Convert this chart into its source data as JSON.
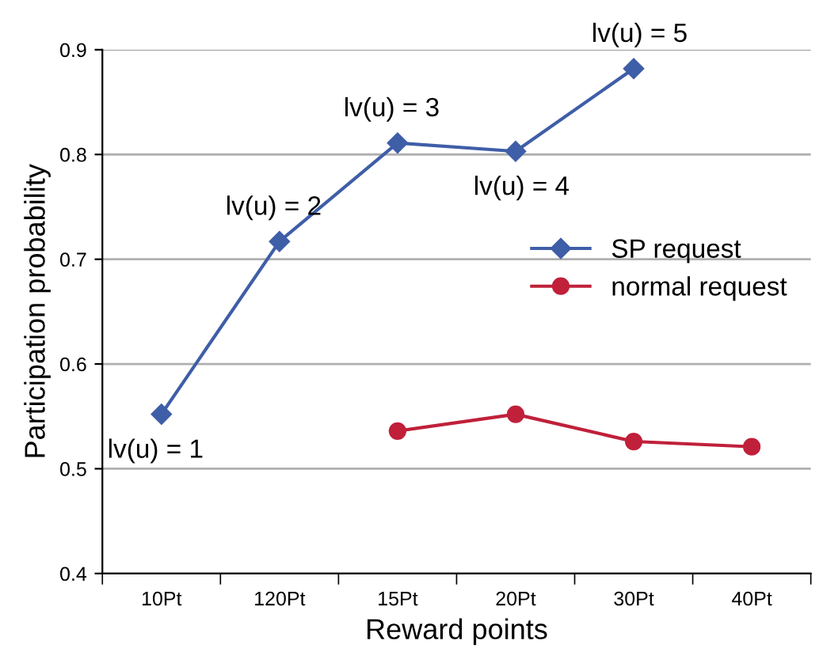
{
  "chart_data": {
    "type": "line",
    "xlabel": "Reward points",
    "ylabel": "Participation probability",
    "categories": [
      "10Pt",
      "120Pt",
      "15Pt",
      "20Pt",
      "30Pt",
      "40Pt"
    ],
    "series": [
      {
        "name": "SP request",
        "color": "#3f5ea8",
        "marker": "diamond",
        "values": [
          0.552,
          0.717,
          0.811,
          0.803,
          0.882,
          null
        ]
      },
      {
        "name": "normal request",
        "color": "#c0203a",
        "marker": "circle",
        "values": [
          null,
          null,
          0.536,
          0.552,
          0.526,
          0.521
        ]
      }
    ],
    "annotations": [
      {
        "text": "lv(u) = 1",
        "x": "10Pt",
        "y": 0.552
      },
      {
        "text": "lv(u) = 2",
        "x": "120Pt",
        "y": 0.717
      },
      {
        "text": "lv(u) = 3",
        "x": "15Pt",
        "y": 0.811
      },
      {
        "text": "lv(u) = 4",
        "x": "20Pt",
        "y": 0.803
      },
      {
        "text": "lv(u) = 5",
        "x": "30Pt",
        "y": 0.882
      }
    ],
    "ylim": [
      0.4,
      0.9
    ],
    "yticks": [
      0.4,
      0.5,
      0.6,
      0.7,
      0.8,
      0.9
    ],
    "grid": "y",
    "legend": "right",
    "line_style": "solid"
  }
}
